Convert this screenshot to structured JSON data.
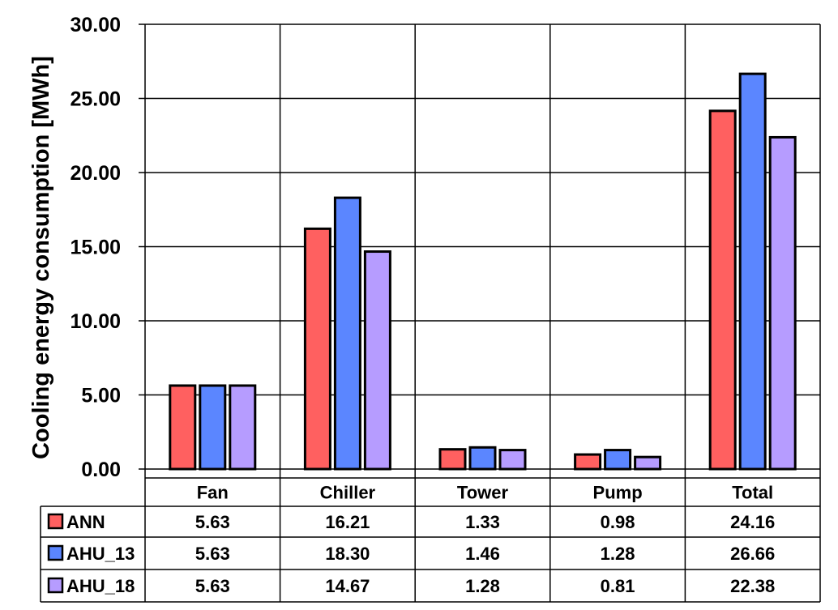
{
  "chart_data": {
    "type": "bar",
    "ylabel": "Cooling energy consumption [MWh]",
    "ylim": [
      0,
      30
    ],
    "yticks": [
      "0.00",
      "5.00",
      "10.00",
      "15.00",
      "20.00",
      "25.00",
      "30.00"
    ],
    "categories": [
      "Fan",
      "Chiller",
      "Tower",
      "Pump",
      "Total"
    ],
    "series": [
      {
        "name": "ANN",
        "color": "#ff6060",
        "values": [
          5.63,
          16.21,
          1.33,
          0.98,
          24.16
        ],
        "labels": [
          "5.63",
          "16.21",
          "1.33",
          "0.98",
          "24.16"
        ]
      },
      {
        "name": "AHU_13",
        "color": "#5b86ff",
        "values": [
          5.63,
          18.3,
          1.46,
          1.28,
          26.66
        ],
        "labels": [
          "5.63",
          "18.30",
          "1.46",
          "1.28",
          "26.66"
        ]
      },
      {
        "name": "AHU_18",
        "color": "#b69cff",
        "values": [
          5.63,
          14.67,
          1.28,
          0.81,
          22.38
        ],
        "labels": [
          "5.63",
          "14.67",
          "1.28",
          "0.81",
          "22.38"
        ]
      }
    ],
    "grid": true,
    "legend": "data-table"
  }
}
